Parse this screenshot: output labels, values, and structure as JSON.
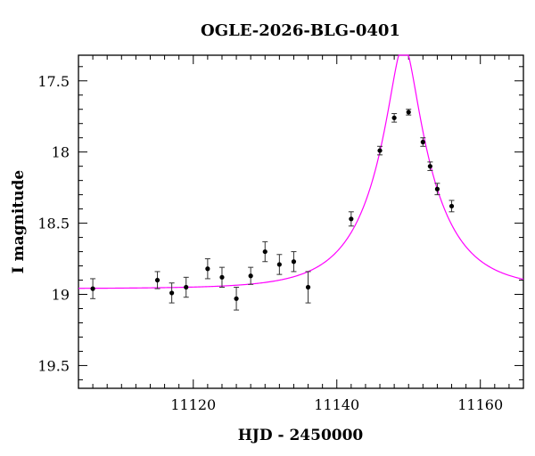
{
  "chart_data": {
    "type": "scatter",
    "title": "OGLE-2026-BLG-0401",
    "xlabel": "HJD - 2450000",
    "ylabel": "I magnitude",
    "xlim": [
      11104,
      11166
    ],
    "ylim": [
      19.66,
      17.32
    ],
    "y_inverted": true,
    "xticks": [
      11120,
      11140,
      11160
    ],
    "yticks": [
      17.5,
      18,
      18.5,
      19,
      19.5
    ],
    "xtick_labels": [
      "11120",
      "11140",
      "11160"
    ],
    "ytick_labels": [
      "17.5",
      "18",
      "18.5",
      "19",
      "19.5"
    ],
    "grid": false,
    "legend": "none",
    "point_color": "#000000",
    "model_color": "#ff00ff",
    "series": [
      {
        "kind": "points_with_errorbars",
        "x": [
          11106,
          11115,
          11117,
          11119,
          11122,
          11124,
          11126,
          11128,
          11130,
          11132,
          11134,
          11136,
          11142,
          11146,
          11148,
          11150,
          11152,
          11153,
          11154,
          11156
        ],
        "y": [
          18.96,
          18.9,
          18.99,
          18.95,
          18.82,
          18.88,
          19.03,
          18.87,
          18.7,
          18.79,
          18.77,
          18.95,
          18.47,
          17.99,
          17.76,
          17.72,
          17.93,
          18.1,
          18.26,
          18.38
        ],
        "err": [
          0.07,
          0.06,
          0.07,
          0.07,
          0.07,
          0.07,
          0.08,
          0.06,
          0.07,
          0.07,
          0.07,
          0.11,
          0.05,
          0.03,
          0.03,
          0.02,
          0.03,
          0.03,
          0.04,
          0.04
        ]
      },
      {
        "kind": "model_curve",
        "model": "pspl",
        "baseline_mag": 18.96,
        "t0": 11149.3,
        "tE": 8.5,
        "u0": 0.21
      }
    ]
  }
}
